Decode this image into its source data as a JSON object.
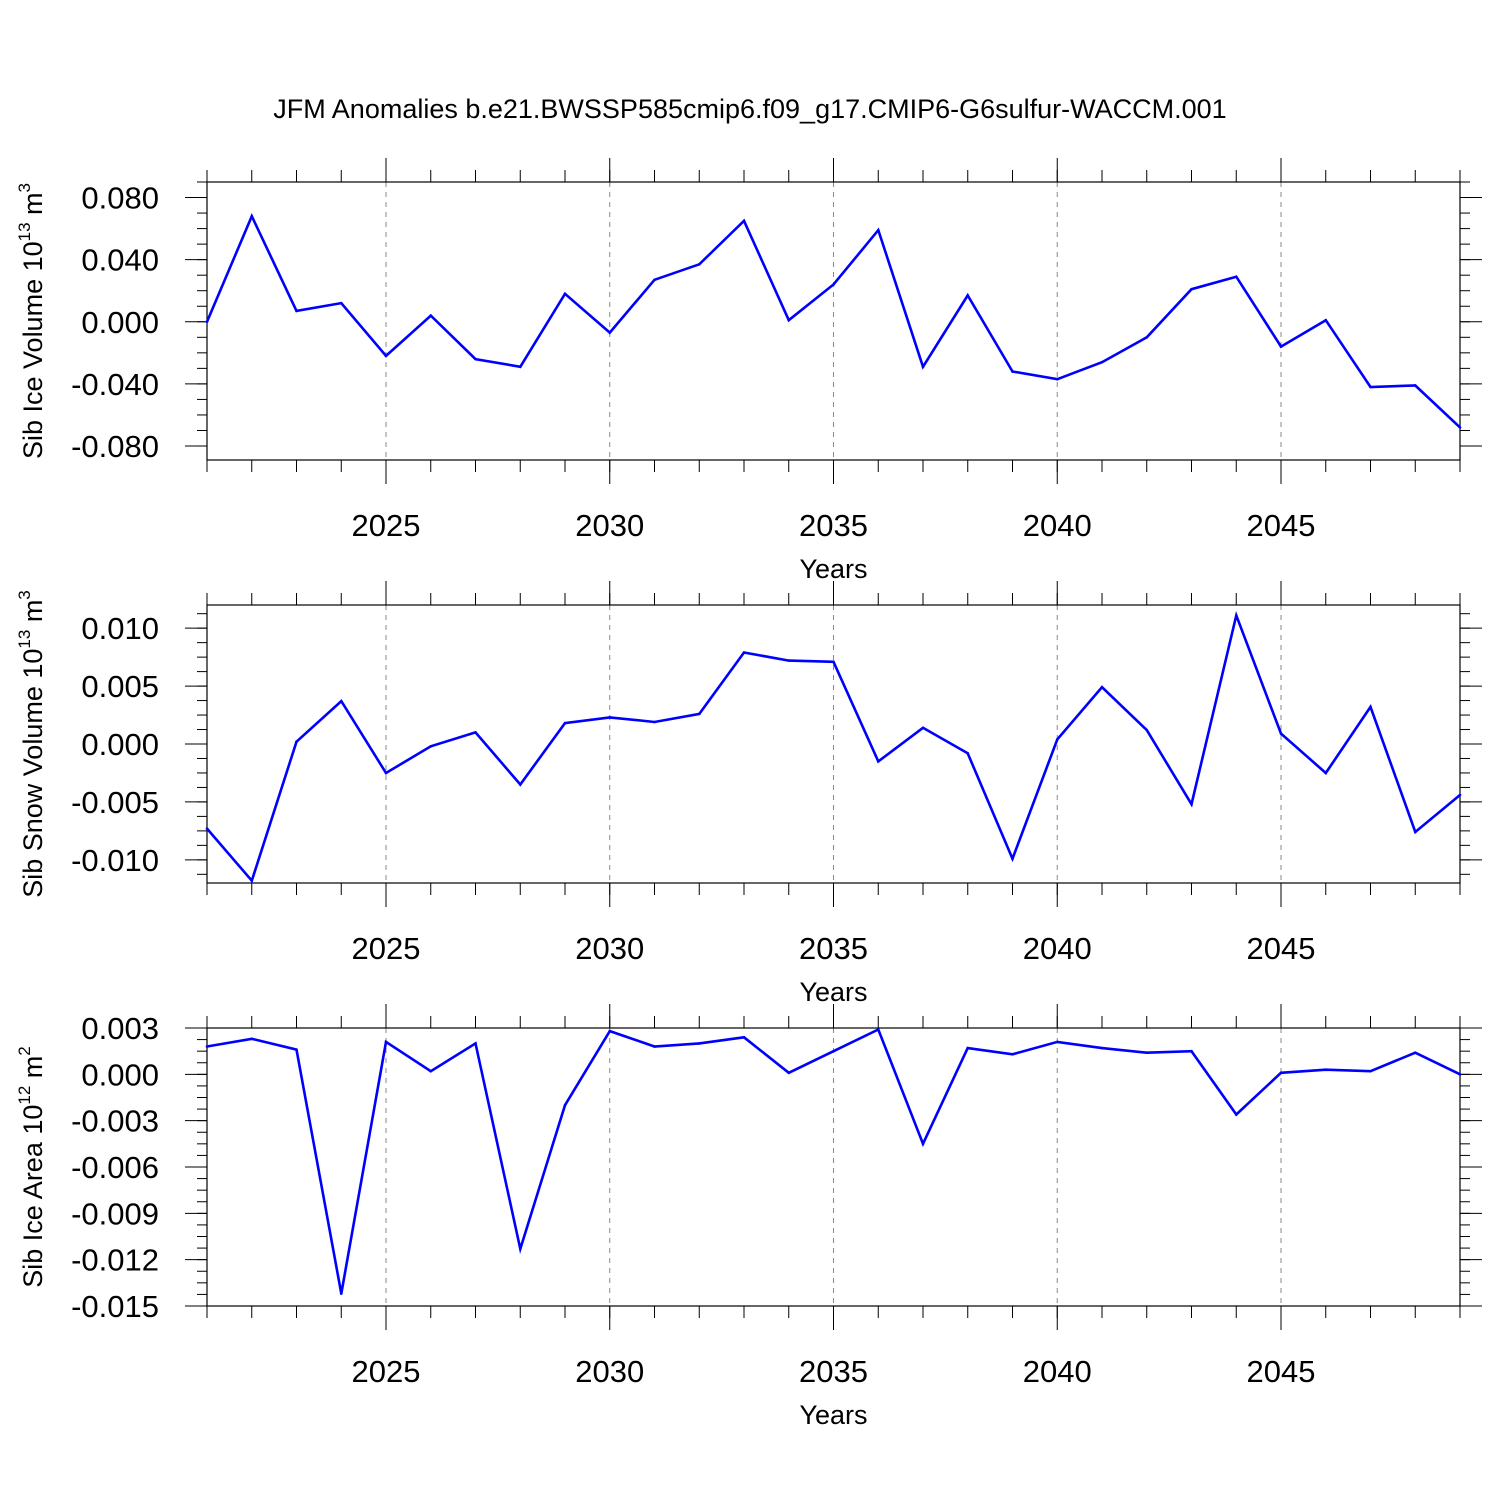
{
  "title": "JFM Anomalies b.e21.BWSSP585cmip6.f09_g17.CMIP6-G6sulfur-WACCM.001",
  "colors": {
    "line": "#0000ff",
    "axis": "#000000",
    "grid": "#888888"
  },
  "chart_data": [
    {
      "type": "line",
      "name": "panel-ice-volume",
      "title": "",
      "xlabel": "Years",
      "ylabel": {
        "prefix": "Sib Ice Volume 10",
        "exp1": "13",
        "mid": " m",
        "exp2": "3"
      },
      "xlim": [
        2021,
        2049
      ],
      "ylim": [
        -0.089,
        0.09
      ],
      "xticks": [
        2025,
        2030,
        2035,
        2040,
        2045
      ],
      "xtick_labels": [
        "2025",
        "2030",
        "2035",
        "2040",
        "2045"
      ],
      "yticks": [
        0.08,
        0.04,
        0.0,
        -0.04,
        -0.08
      ],
      "ytick_labels": [
        "0.080",
        "0.040",
        "0.000",
        "-0.040",
        "-0.080"
      ],
      "grid": "vertical dashed at major x ticks",
      "x": [
        2021,
        2022,
        2023,
        2024,
        2025,
        2026,
        2027,
        2028,
        2029,
        2030,
        2031,
        2032,
        2033,
        2034,
        2035,
        2036,
        2037,
        2038,
        2039,
        2040,
        2041,
        2042,
        2043,
        2044,
        2045,
        2046,
        2047,
        2048,
        2049
      ],
      "values": [
        0.0,
        0.068,
        0.007,
        0.012,
        -0.022,
        0.004,
        -0.024,
        -0.029,
        0.018,
        -0.007,
        0.027,
        0.037,
        0.065,
        0.001,
        0.024,
        0.059,
        -0.029,
        0.017,
        -0.032,
        -0.037,
        -0.026,
        -0.01,
        0.021,
        0.029,
        -0.016,
        0.001,
        -0.042,
        -0.041,
        -0.068
      ]
    },
    {
      "type": "line",
      "name": "panel-snow-volume",
      "title": "",
      "xlabel": "Years",
      "ylabel": {
        "prefix": "Sib Snow Volume 10",
        "exp1": "13",
        "mid": " m",
        "exp2": "3"
      },
      "xlim": [
        2021,
        2049
      ],
      "ylim": [
        -0.012,
        0.012
      ],
      "xticks": [
        2025,
        2030,
        2035,
        2040,
        2045
      ],
      "xtick_labels": [
        "2025",
        "2030",
        "2035",
        "2040",
        "2045"
      ],
      "yticks": [
        0.01,
        0.005,
        0.0,
        -0.005,
        -0.01
      ],
      "ytick_labels": [
        "0.010",
        "0.005",
        "0.000",
        "-0.005",
        "-0.010"
      ],
      "grid": "vertical dashed at major x ticks",
      "x": [
        2021,
        2022,
        2023,
        2024,
        2025,
        2026,
        2027,
        2028,
        2029,
        2030,
        2031,
        2032,
        2033,
        2034,
        2035,
        2036,
        2037,
        2038,
        2039,
        2040,
        2041,
        2042,
        2043,
        2044,
        2045,
        2046,
        2047,
        2048,
        2049
      ],
      "values": [
        -0.0073,
        -0.0118,
        0.0002,
        0.0037,
        -0.0025,
        -0.0002,
        0.001,
        -0.0035,
        0.0018,
        0.0023,
        0.0019,
        0.0026,
        0.0079,
        0.0072,
        0.0071,
        -0.0015,
        0.0014,
        -0.0008,
        -0.0099,
        0.0004,
        0.0049,
        0.0012,
        -0.0052,
        0.0111,
        0.0009,
        -0.0025,
        0.0032,
        -0.0076,
        -0.0044
      ]
    },
    {
      "type": "line",
      "name": "panel-ice-area",
      "title": "",
      "xlabel": "Years",
      "ylabel": {
        "prefix": "Sib Ice Area 10",
        "exp1": "12",
        "mid": " m",
        "exp2": "2"
      },
      "xlim": [
        2021,
        2049
      ],
      "ylim": [
        -0.015,
        0.003
      ],
      "xticks": [
        2025,
        2030,
        2035,
        2040,
        2045
      ],
      "xtick_labels": [
        "2025",
        "2030",
        "2035",
        "2040",
        "2045"
      ],
      "yticks": [
        0.003,
        0.0,
        -0.003,
        -0.006,
        -0.009,
        -0.012,
        -0.015
      ],
      "ytick_labels": [
        "0.003",
        "0.000",
        "-0.003",
        "-0.006",
        "-0.009",
        "-0.012",
        "-0.015"
      ],
      "grid": "vertical dashed at major x ticks",
      "x": [
        2021,
        2022,
        2023,
        2024,
        2025,
        2026,
        2027,
        2028,
        2029,
        2030,
        2031,
        2032,
        2033,
        2034,
        2035,
        2036,
        2037,
        2038,
        2039,
        2040,
        2041,
        2042,
        2043,
        2044,
        2045,
        2046,
        2047,
        2048,
        2049
      ],
      "values": [
        0.0018,
        0.0023,
        0.0016,
        -0.0142,
        0.0021,
        0.0002,
        0.002,
        -0.0113,
        -0.002,
        0.0028,
        0.0018,
        0.002,
        0.0024,
        0.0001,
        0.0015,
        0.0029,
        -0.0045,
        0.0017,
        0.0013,
        0.0021,
        0.0017,
        0.0014,
        0.0015,
        -0.0026,
        0.0001,
        0.0003,
        0.0002,
        0.0014,
        0.0
      ]
    }
  ]
}
